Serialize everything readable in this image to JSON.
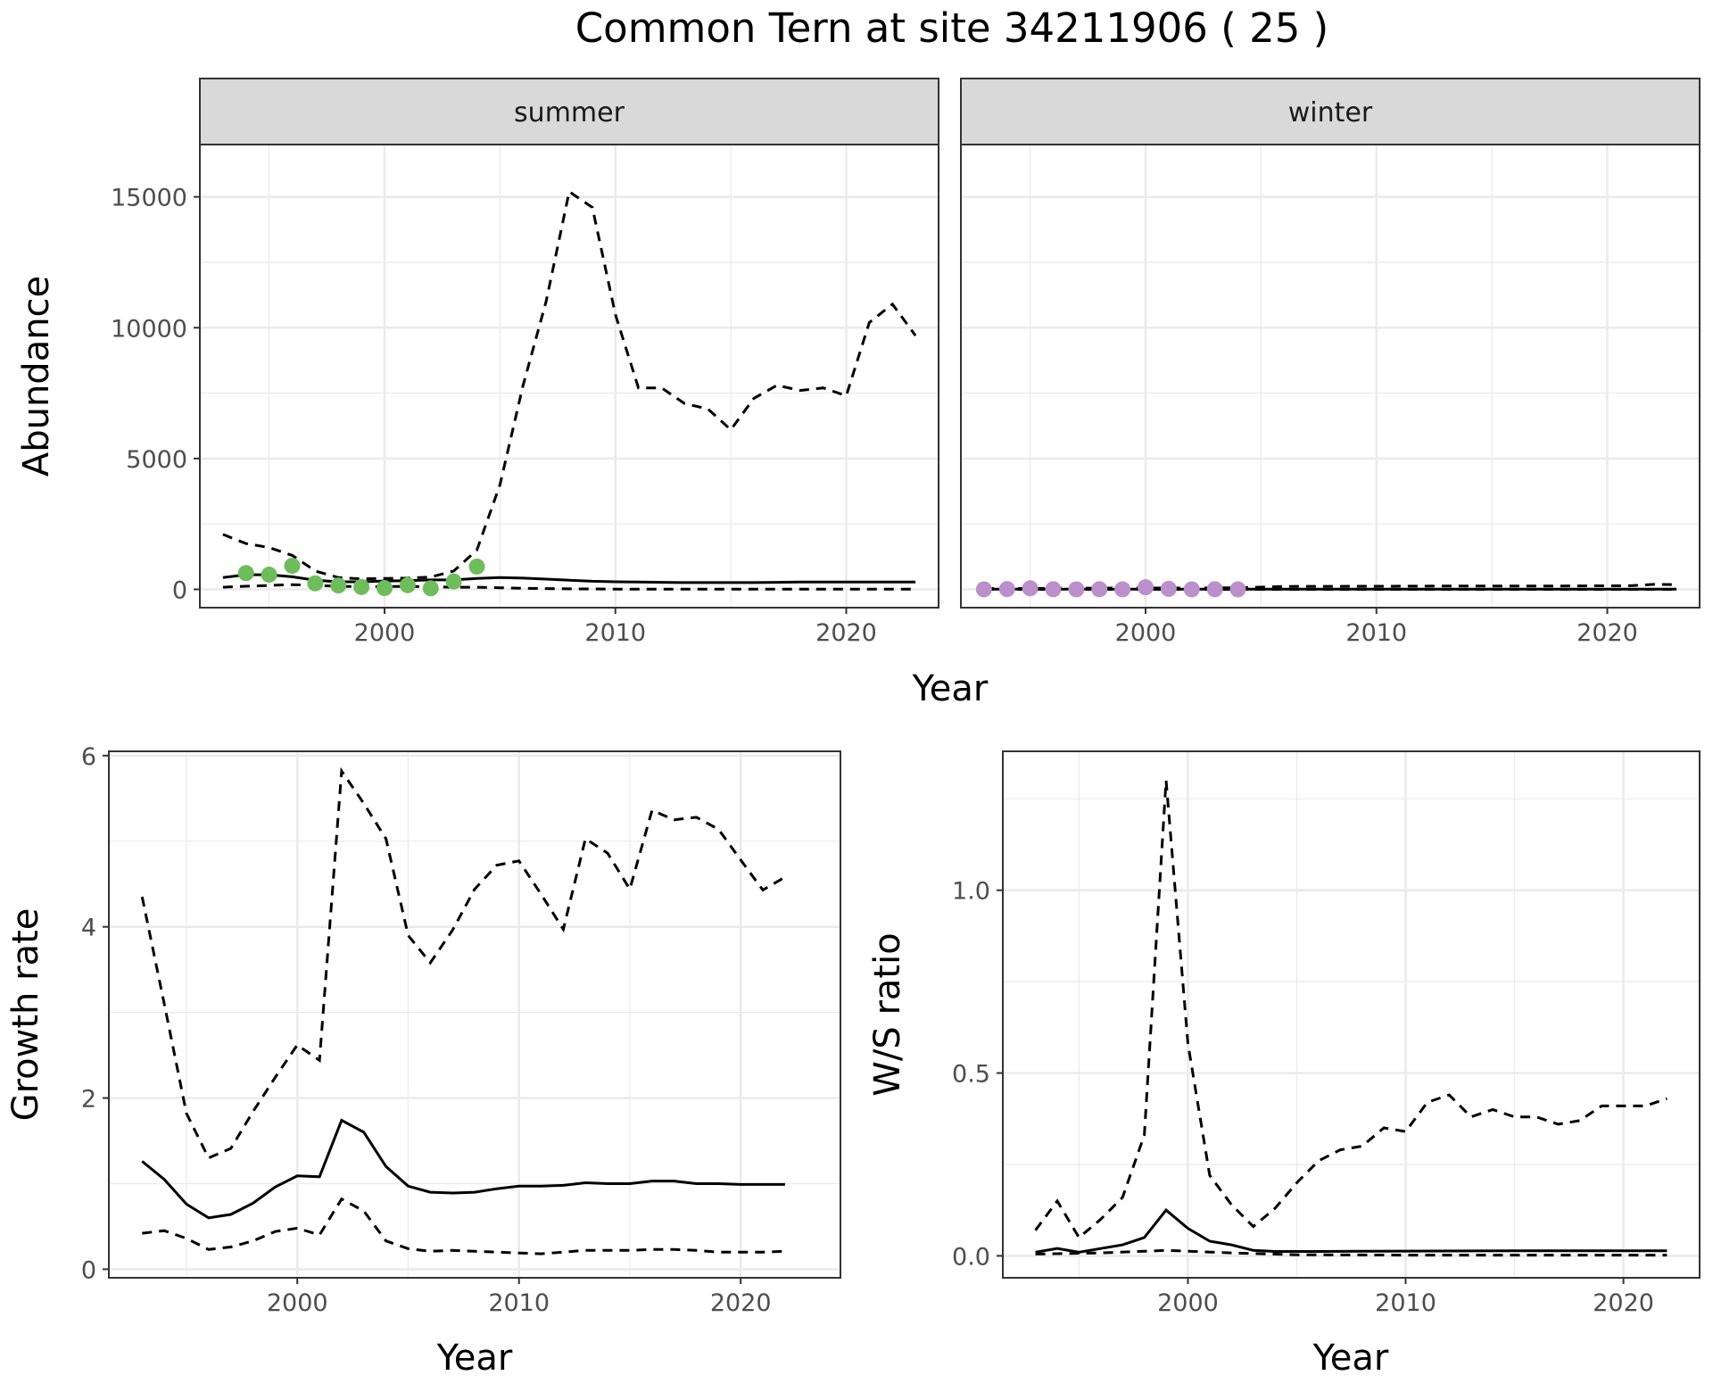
{
  "title": "Common Tern at site 34211906 ( 25 )",
  "chart_data": [
    {
      "type": "line",
      "facet": "summer",
      "xlabel": "Year",
      "ylabel": "Abundance",
      "xlim": [
        1992,
        2024
      ],
      "ylim": [
        -700,
        17000
      ],
      "xticks": [
        2000,
        2010,
        2020
      ],
      "yticks": [
        0,
        5000,
        10000,
        15000
      ],
      "points_color": "#6dbd5a",
      "points": {
        "x": [
          1994,
          1995,
          1996,
          1997,
          1998,
          1999,
          2000,
          2001,
          2002,
          2003,
          2004
        ],
        "y": [
          620,
          560,
          900,
          230,
          150,
          90,
          50,
          160,
          40,
          300,
          870
        ]
      },
      "series": [
        {
          "style": "solid",
          "x": [
            1993,
            1994,
            1995,
            1996,
            1997,
            1998,
            1999,
            2000,
            2001,
            2002,
            2003,
            2004,
            2005,
            2006,
            2007,
            2008,
            2009,
            2010,
            2011,
            2012,
            2013,
            2014,
            2015,
            2016,
            2017,
            2018,
            2019,
            2020,
            2021,
            2022,
            2023
          ],
          "y": [
            450,
            560,
            560,
            480,
            350,
            290,
            290,
            320,
            330,
            360,
            360,
            420,
            450,
            430,
            390,
            350,
            310,
            290,
            280,
            270,
            260,
            260,
            260,
            260,
            270,
            280,
            280,
            280,
            280,
            280,
            280
          ]
        },
        {
          "style": "dashed",
          "x": [
            1993,
            1994,
            1995,
            1996,
            1997,
            1998,
            1999,
            2000,
            2001,
            2002,
            2003,
            2004,
            2005,
            2006,
            2007,
            2008,
            2009,
            2010,
            2011,
            2012,
            2013,
            2014,
            2015,
            2016,
            2017,
            2018,
            2019,
            2020,
            2021,
            2022,
            2023
          ],
          "y": [
            2100,
            1750,
            1600,
            1300,
            700,
            450,
            400,
            420,
            430,
            470,
            700,
            1500,
            4000,
            7800,
            11000,
            15200,
            14600,
            10500,
            7700,
            7700,
            7100,
            6900,
            6100,
            7300,
            7800,
            7600,
            7700,
            7400,
            10200,
            10900,
            9700
          ]
        },
        {
          "style": "dashed",
          "x": [
            1993,
            1994,
            1995,
            1996,
            1997,
            1998,
            1999,
            2000,
            2001,
            2002,
            2003,
            2004,
            2005,
            2006,
            2007,
            2008,
            2009,
            2010,
            2011,
            2012,
            2013,
            2014,
            2015,
            2016,
            2017,
            2018,
            2019,
            2020,
            2021,
            2022,
            2023
          ],
          "y": [
            80,
            120,
            150,
            180,
            150,
            120,
            100,
            110,
            110,
            100,
            80,
            80,
            60,
            40,
            30,
            20,
            15,
            10,
            10,
            10,
            10,
            10,
            10,
            10,
            10,
            10,
            10,
            10,
            10,
            10,
            10
          ]
        }
      ]
    },
    {
      "type": "line",
      "facet": "winter",
      "xlabel": "Year",
      "ylabel": "Abundance",
      "xlim": [
        1992,
        2024
      ],
      "ylim": [
        -700,
        17000
      ],
      "xticks": [
        2000,
        2010,
        2020
      ],
      "yticks": [
        0,
        5000,
        10000,
        15000
      ],
      "points_color": "#bb8fcb",
      "points": {
        "x": [
          1993,
          1994,
          1995,
          1996,
          1997,
          1998,
          1999,
          2000,
          2001,
          2002,
          2003,
          2004
        ],
        "y": [
          0,
          10,
          40,
          5,
          0,
          5,
          0,
          80,
          20,
          0,
          5,
          0
        ]
      },
      "series": [
        {
          "style": "solid",
          "x": [
            1993,
            1998,
            2003,
            2008,
            2013,
            2018,
            2023
          ],
          "y": [
            10,
            10,
            10,
            10,
            10,
            10,
            10
          ]
        },
        {
          "style": "dashed",
          "x": [
            1993,
            1996,
            1999,
            2002,
            2004,
            2006,
            2010,
            2014,
            2018,
            2021,
            2022,
            2023
          ],
          "y": [
            30,
            40,
            50,
            50,
            60,
            110,
            120,
            130,
            130,
            140,
            190,
            180
          ]
        },
        {
          "style": "dashed",
          "x": [
            1993,
            2000,
            2010,
            2023
          ],
          "y": [
            0,
            0,
            0,
            0
          ]
        }
      ]
    },
    {
      "type": "line",
      "xlabel": "Year",
      "ylabel": "Growth rate",
      "xlim": [
        1991.5,
        2024.5
      ],
      "ylim": [
        -0.1,
        6.05
      ],
      "xticks": [
        2000,
        2010,
        2020
      ],
      "yticks": [
        0,
        2,
        4,
        6
      ],
      "series": [
        {
          "style": "solid",
          "x": [
            1993,
            1994,
            1995,
            1996,
            1997,
            1998,
            1999,
            2000,
            2001,
            2002,
            2003,
            2004,
            2005,
            2006,
            2007,
            2008,
            2009,
            2010,
            2011,
            2012,
            2013,
            2014,
            2015,
            2016,
            2017,
            2018,
            2019,
            2020,
            2021,
            2022
          ],
          "y": [
            1.26,
            1.05,
            0.76,
            0.6,
            0.64,
            0.77,
            0.96,
            1.09,
            1.08,
            1.74,
            1.6,
            1.2,
            0.97,
            0.9,
            0.89,
            0.9,
            0.94,
            0.97,
            0.97,
            0.98,
            1.01,
            1.0,
            1.0,
            1.03,
            1.03,
            1.0,
            1.0,
            0.99,
            0.99,
            0.99
          ]
        },
        {
          "style": "dashed",
          "x": [
            1993,
            1994,
            1995,
            1996,
            1997,
            1998,
            1999,
            2000,
            2001,
            2002,
            2003,
            2004,
            2005,
            2006,
            2007,
            2008,
            2009,
            2010,
            2011,
            2012,
            2013,
            2014,
            2015,
            2016,
            2017,
            2018,
            2019,
            2020,
            2021,
            2022
          ],
          "y": [
            4.35,
            3.1,
            1.82,
            1.3,
            1.41,
            1.84,
            2.24,
            2.62,
            2.44,
            5.82,
            5.44,
            5.03,
            3.9,
            3.58,
            3.96,
            4.44,
            4.72,
            4.77,
            4.38,
            3.97,
            5.03,
            4.86,
            4.44,
            5.36,
            5.25,
            5.28,
            5.14,
            4.78,
            4.43,
            4.58
          ]
        },
        {
          "style": "dashed",
          "x": [
            1993,
            1994,
            1995,
            1996,
            1997,
            1998,
            1999,
            2000,
            2001,
            2002,
            2003,
            2004,
            2005,
            2006,
            2007,
            2008,
            2009,
            2010,
            2011,
            2012,
            2013,
            2014,
            2015,
            2016,
            2017,
            2018,
            2019,
            2020,
            2021,
            2022
          ],
          "y": [
            0.42,
            0.45,
            0.36,
            0.23,
            0.26,
            0.33,
            0.44,
            0.48,
            0.4,
            0.82,
            0.68,
            0.33,
            0.24,
            0.21,
            0.22,
            0.21,
            0.2,
            0.19,
            0.18,
            0.2,
            0.22,
            0.22,
            0.22,
            0.23,
            0.23,
            0.22,
            0.2,
            0.2,
            0.2,
            0.21
          ]
        }
      ]
    },
    {
      "type": "line",
      "xlabel": "Year",
      "ylabel": "W/S ratio",
      "xlim": [
        1991.5,
        2023.5
      ],
      "ylim": [
        -0.06,
        1.38
      ],
      "xticks": [
        2000,
        2010,
        2020
      ],
      "yticks": [
        0.0,
        0.5,
        1.0
      ],
      "ytick_labels": [
        "0.0",
        "0.5",
        "1.0"
      ],
      "series": [
        {
          "style": "solid",
          "x": [
            1993,
            1994,
            1995,
            1996,
            1997,
            1998,
            1999,
            2000,
            2001,
            2002,
            2003,
            2004,
            2006,
            2010,
            2015,
            2022
          ],
          "y": [
            0.01,
            0.02,
            0.01,
            0.02,
            0.03,
            0.05,
            0.125,
            0.075,
            0.04,
            0.03,
            0.015,
            0.012,
            0.012,
            0.013,
            0.014,
            0.014
          ]
        },
        {
          "style": "dashed",
          "x": [
            1993,
            1994,
            1995,
            1996,
            1997,
            1998,
            1999,
            2000,
            2001,
            2002,
            2003,
            2004,
            2005,
            2006,
            2007,
            2008,
            2009,
            2010,
            2011,
            2012,
            2013,
            2014,
            2015,
            2016,
            2017,
            2018,
            2019,
            2020,
            2021,
            2022
          ],
          "y": [
            0.07,
            0.15,
            0.05,
            0.1,
            0.16,
            0.33,
            1.3,
            0.58,
            0.22,
            0.14,
            0.08,
            0.13,
            0.2,
            0.26,
            0.29,
            0.3,
            0.35,
            0.34,
            0.42,
            0.44,
            0.38,
            0.4,
            0.38,
            0.38,
            0.36,
            0.37,
            0.41,
            0.41,
            0.41,
            0.43
          ]
        },
        {
          "style": "dashed",
          "x": [
            1993,
            1996,
            1999,
            2002,
            2005,
            2010,
            2015,
            2022
          ],
          "y": [
            0.005,
            0.008,
            0.015,
            0.008,
            0.003,
            0.002,
            0.002,
            0.002
          ]
        }
      ]
    }
  ]
}
